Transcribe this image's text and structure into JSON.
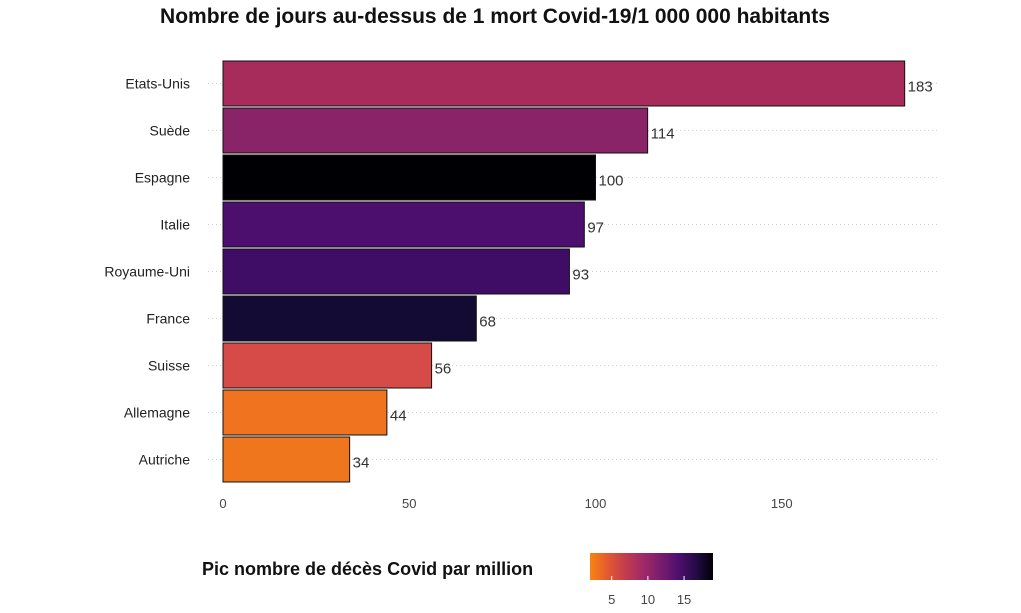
{
  "chart_data": {
    "type": "bar",
    "orientation": "horizontal",
    "title": "Nombre de jours au-dessus de 1 mort Covid-19/1 000 000 habitants",
    "categories": [
      "Etats-Unis",
      "Suède",
      "Espagne",
      "Italie",
      "Royaume-Uni",
      "France",
      "Suisse",
      "Allemagne",
      "Autriche"
    ],
    "values": [
      183,
      114,
      100,
      97,
      93,
      68,
      56,
      44,
      34
    ],
    "bar_colors": [
      "#a72c5c",
      "#8a2468",
      "#000004",
      "#4c0f6e",
      "#3f0c66",
      "#140b34",
      "#d64a47",
      "#f0741f",
      "#f0761e"
    ],
    "xlim": [
      0,
      192
    ],
    "xticks": [
      0,
      50,
      100,
      150
    ],
    "grid": "horizontal dotted",
    "legend": {
      "title": "Pic nombre de décès Covid par million",
      "type": "colorbar",
      "placement": "bottom",
      "ticks": [
        5,
        10,
        15
      ],
      "range": [
        2,
        19
      ],
      "colors": [
        "#f8850f",
        "#e35932",
        "#c43c4e",
        "#a02a68",
        "#7a1d6d",
        "#4f106e",
        "#250c48",
        "#000004"
      ]
    }
  }
}
